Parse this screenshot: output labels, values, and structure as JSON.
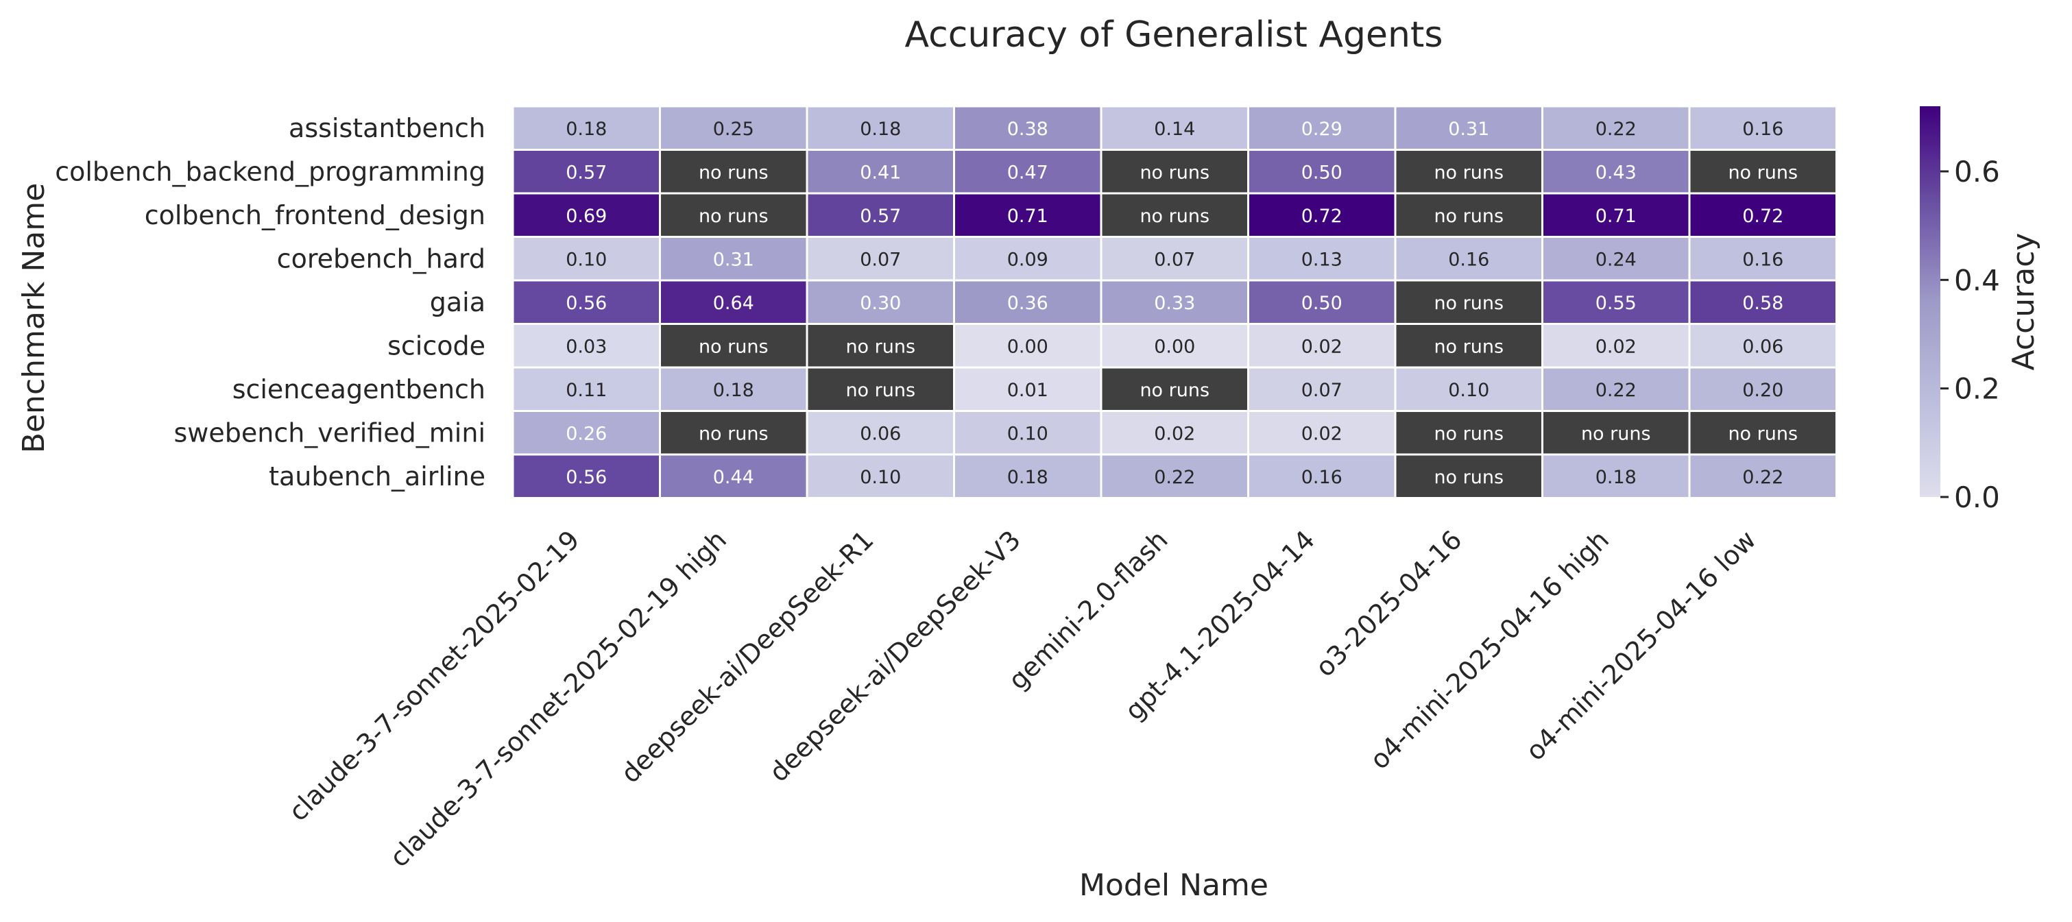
{
  "chart_data": {
    "type": "heatmap",
    "title": "Accuracy of Generalist Agents",
    "xlabel": "Model Name",
    "ylabel": "Benchmark Name",
    "colorbar_label": "Accuracy",
    "colorbar_range": [
      0.0,
      0.72
    ],
    "colorbar_ticks": [
      "0.0",
      "0.2",
      "0.4",
      "0.6"
    ],
    "missing_label": "no runs",
    "missing_color": "#404040",
    "colormap": "Purples",
    "rows": [
      "assistantbench",
      "colbench_backend_programming",
      "colbench_frontend_design",
      "corebench_hard",
      "gaia",
      "scicode",
      "scienceagentbench",
      "swebench_verified_mini",
      "taubench_airline"
    ],
    "columns": [
      "claude-3-7-sonnet-2025-02-19",
      "claude-3-7-sonnet-2025-02-19 high",
      "deepseek-ai/DeepSeek-R1",
      "deepseek-ai/DeepSeek-V3",
      "gemini-2.0-flash",
      "gpt-4.1-2025-04-14",
      "o3-2025-04-16",
      "o4-mini-2025-04-16 high",
      "o4-mini-2025-04-16 low"
    ],
    "values": [
      [
        0.18,
        0.25,
        0.18,
        0.38,
        0.14,
        0.29,
        0.31,
        0.22,
        0.16
      ],
      [
        0.57,
        null,
        0.41,
        0.47,
        null,
        0.5,
        null,
        0.43,
        null
      ],
      [
        0.69,
        null,
        0.57,
        0.71,
        null,
        0.72,
        null,
        0.71,
        0.72
      ],
      [
        0.1,
        0.31,
        0.07,
        0.09,
        0.07,
        0.13,
        0.16,
        0.24,
        0.16
      ],
      [
        0.56,
        0.64,
        0.3,
        0.36,
        0.33,
        0.5,
        null,
        0.55,
        0.58
      ],
      [
        0.03,
        null,
        null,
        0.0,
        0.0,
        0.02,
        null,
        0.02,
        0.06
      ],
      [
        0.11,
        0.18,
        null,
        0.01,
        null,
        0.07,
        0.1,
        0.22,
        0.2
      ],
      [
        0.26,
        null,
        0.06,
        0.1,
        0.02,
        0.02,
        null,
        null,
        null
      ],
      [
        0.56,
        0.44,
        0.1,
        0.18,
        0.22,
        0.16,
        null,
        0.18,
        0.22
      ]
    ]
  }
}
